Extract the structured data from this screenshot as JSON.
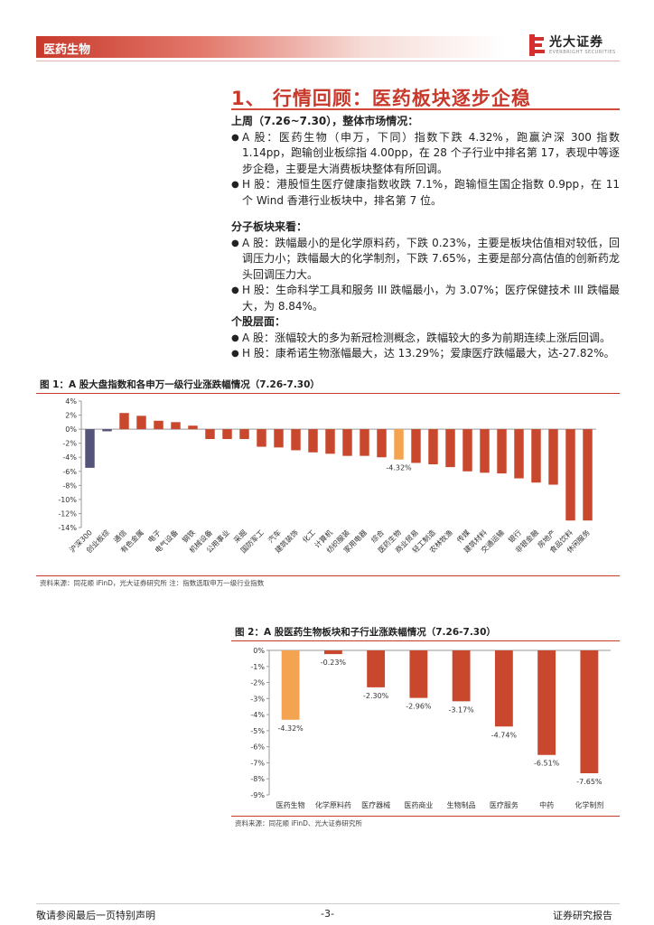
{
  "header": {
    "section": "医药生物",
    "logo_name": "光大证券",
    "logo_sub": "EVERBRIGHT SECURITIES"
  },
  "section_title": "1、 行情回顾：医药板块逐步企稳",
  "market": {
    "heading": "上周（7.26~7.30），整体市场情况：",
    "a": "A 股：医药生物（申万，下同）指数下跌 4.32%，跑赢沪深 300 指数 1.14pp，跑输创业板综指 4.00pp，在 28 个子行业中排名第 17，表现中等逐步企稳，主要是大消费板块整体有所回调。",
    "h": "H 股：港股恒生医疗健康指数收跌 7.1%，跑输恒生国企指数 0.9pp，在 11 个 Wind 香港行业板块中，排名第 7 位。"
  },
  "sub_sector": {
    "heading": "分子板块来看：",
    "a": "A 股：跌幅最小的是化学原料药，下跌 0.23%，主要是板块估值相对较低，回调压力小；跌幅最大的化学制剂，下跌 7.65%，主要是部分高估值的创新药龙头回调压力大。",
    "h": "H 股：生命科学工具和服务 III 跌幅最小，为 3.07%；医疗保健技术 III 跌幅最大，为 8.84%。"
  },
  "stocks": {
    "heading": "个股层面：",
    "a": "A 股：涨幅较大的多为新冠检测概念，跌幅较大的多为前期连续上涨后回调。",
    "h": "H 股：康希诺生物涨幅最大，达 13.29%；爱康医疗跌幅最大，达-27.82%。"
  },
  "fig1": {
    "title": "图 1：A 股大盘指数和各申万一级行业涨跌幅情况（7.26-7.30）",
    "source": "资料来源：同花顺 iFinD，光大证券研究所   注：指数选取申万一级行业指数"
  },
  "fig2": {
    "title": "图 2：A 股医药生物板块和子行业涨跌幅情况（7.26-7.30）",
    "source": "资料来源：同花顺 iFinD、光大证券研究所"
  },
  "chart_data": [
    {
      "type": "bar",
      "categories": [
        "沪深300",
        "创业板综",
        "通信",
        "有色金属",
        "电子",
        "电气设备",
        "钢铁",
        "机械设备",
        "公用事业",
        "采掘",
        "国防军工",
        "汽车",
        "建筑装饰",
        "化工",
        "计算机",
        "纺织服装",
        "家用电器",
        "综合",
        "医药生物",
        "商业贸易",
        "轻工制造",
        "农林牧渔",
        "传媒",
        "建筑材料",
        "交通运输",
        "银行",
        "非银金融",
        "房地产",
        "食品饮料",
        "休闲服务"
      ],
      "values": [
        -5.5,
        -0.3,
        2.3,
        1.9,
        1.2,
        1.0,
        0.5,
        -1.4,
        -1.4,
        -1.4,
        -2.5,
        -2.6,
        -3.0,
        -3.3,
        -3.5,
        -3.8,
        -3.8,
        -4.0,
        -4.32,
        -4.8,
        -5.0,
        -5.4,
        -6.0,
        -6.2,
        -6.3,
        -7.0,
        -7.6,
        -7.9,
        -13.0,
        -13.0
      ],
      "data_labels": {
        "18": "-4.32%"
      },
      "highlight": {
        "0": "#545379",
        "1": "#545379",
        "18": "#f4a351"
      },
      "bar_color": "#c9472c",
      "ylim": [
        -14,
        4
      ],
      "yticks": [
        "4%",
        "2%",
        "0%",
        "-2%",
        "-4%",
        "-6%",
        "-8%",
        "-10%",
        "-12%",
        "-14%"
      ],
      "grid": false
    },
    {
      "type": "bar",
      "categories": [
        "医药生物",
        "化学原料药",
        "医疗器械",
        "医药商业",
        "生物制品",
        "医疗服务",
        "中药",
        "化学制剂"
      ],
      "values": [
        -4.32,
        -0.23,
        -2.3,
        -2.96,
        -3.17,
        -4.74,
        -6.51,
        -7.65
      ],
      "data_labels": [
        "-4.32%",
        "-0.23%",
        "-2.30%",
        "-2.96%",
        "-3.17%",
        "-4.74%",
        "-6.51%",
        "-7.65%"
      ],
      "highlight": {
        "0": "#f4a351"
      },
      "bar_color": "#c9472c",
      "ylim": [
        -9,
        0
      ],
      "yticks": [
        "0%",
        "-1%",
        "-2%",
        "-3%",
        "-4%",
        "-5%",
        "-6%",
        "-7%",
        "-8%",
        "-9%"
      ],
      "grid": false
    }
  ],
  "footer": {
    "left": "敬请参阅最后一页特别声明",
    "page": "-3-",
    "right": "证券研究报告"
  }
}
